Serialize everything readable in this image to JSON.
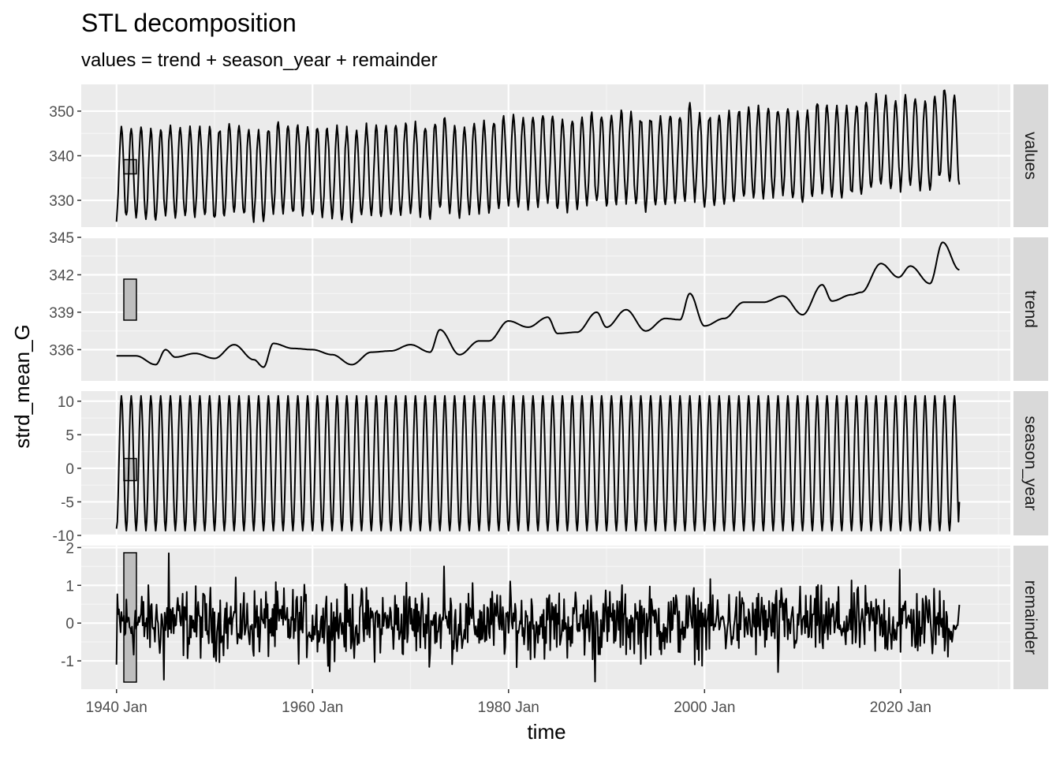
{
  "chart_data": {
    "type": "line",
    "title": "STL decomposition",
    "subtitle": "values = trend + season_year + remainder",
    "xlabel": "time",
    "ylabel": "strd_mean_G",
    "x_range": [
      "1940 Jan",
      "2026 Jan"
    ],
    "x_ticks": [
      "1940 Jan",
      "1960 Jan",
      "1980 Jan",
      "2000 Jan",
      "2020 Jan"
    ],
    "grid": true,
    "scale_bars": true,
    "line_color": "#000000",
    "panel_background": "#ebebeb",
    "strip_background": "#d9d9d9",
    "panels": [
      {
        "name": "values",
        "ylim": [
          324,
          356
        ],
        "y_ticks": [
          330,
          340,
          350
        ],
        "y_tick_labels": [
          "330",
          "340",
          "350"
        ],
        "description": "monthly series: trend plus annual seasonal cycle plus remainder"
      },
      {
        "name": "trend",
        "ylim": [
          333.5,
          345
        ],
        "y_ticks": [
          336,
          339,
          342,
          345
        ],
        "y_tick_labels": [
          "336",
          "339",
          "342",
          "345"
        ],
        "x_years": [
          1940,
          1942,
          1944,
          1945,
          1946,
          1948,
          1950,
          1952,
          1954,
          1955,
          1956,
          1958,
          1960,
          1962,
          1964,
          1966,
          1968,
          1970,
          1972,
          1973,
          1975,
          1977,
          1978,
          1980,
          1982,
          1984,
          1985,
          1987,
          1989,
          1990,
          1992,
          1994,
          1996,
          1997.5,
          1998.5,
          2000,
          2002,
          2004,
          2006,
          2008,
          2010,
          2012,
          2013,
          2015,
          2016,
          2018,
          2019.8,
          2021,
          2023,
          2024.3,
          2026
        ],
        "values": [
          335.5,
          335.5,
          334.8,
          336.0,
          335.4,
          335.7,
          335.3,
          336.4,
          335.2,
          334.6,
          336.5,
          336.1,
          336.0,
          335.6,
          334.8,
          335.8,
          335.9,
          336.4,
          335.8,
          337.6,
          335.6,
          336.7,
          336.7,
          338.3,
          337.8,
          338.6,
          337.3,
          337.4,
          339.0,
          337.8,
          339.2,
          337.5,
          338.5,
          338.4,
          340.5,
          337.9,
          338.5,
          339.8,
          339.8,
          340.3,
          338.8,
          341.2,
          339.9,
          340.4,
          340.6,
          342.9,
          341.8,
          342.7,
          341.3,
          344.6,
          342.4
        ]
      },
      {
        "name": "season_year",
        "ylim": [
          -10,
          11.5
        ],
        "y_ticks": [
          -10,
          -5,
          0,
          5,
          10
        ],
        "y_tick_labels": [
          "-10",
          "-5",
          "0",
          "5",
          "10"
        ],
        "seasonal_max": 10.8,
        "seasonal_min": -9.3,
        "start_value": -9.0,
        "end_value": -5.0
      },
      {
        "name": "remainder",
        "ylim": [
          -1.75,
          2.05
        ],
        "y_ticks": [
          -1,
          0,
          1,
          2
        ],
        "y_tick_labels": [
          "-1",
          "0",
          "1",
          "2"
        ],
        "notable_values": [
          {
            "x": 1940.0,
            "y": -1.1
          },
          {
            "x": 1945.3,
            "y": 1.85
          },
          {
            "x": 1944.8,
            "y": -1.5
          },
          {
            "x": 1969.6,
            "y": 1.07
          },
          {
            "x": 1973.4,
            "y": 1.5
          },
          {
            "x": 1988.8,
            "y": -1.55
          },
          {
            "x": 2007.5,
            "y": -1.3
          },
          {
            "x": 2019.9,
            "y": 1.42
          }
        ]
      }
    ]
  }
}
